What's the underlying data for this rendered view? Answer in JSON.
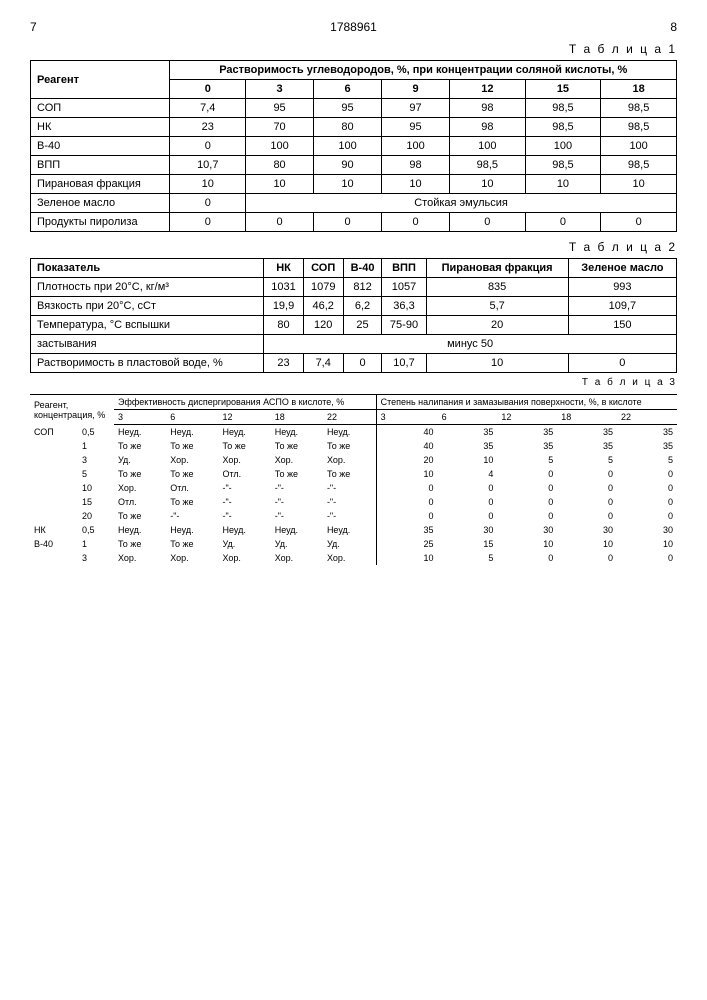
{
  "header": {
    "page_left": "7",
    "doc_number": "1788961",
    "page_right": "8"
  },
  "table1": {
    "caption": "Т а б л и ц а 1",
    "col_reagent": "Реагент",
    "header_span": "Растворимость углеводородов, %, при концентрации соляной кислоты, %",
    "conc": [
      "0",
      "3",
      "6",
      "9",
      "12",
      "15",
      "18"
    ],
    "rows": [
      {
        "label": "СОП",
        "vals": [
          "7,4",
          "95",
          "95",
          "97",
          "98",
          "98,5",
          "98,5"
        ]
      },
      {
        "label": "НК",
        "vals": [
          "23",
          "70",
          "80",
          "95",
          "98",
          "98,5",
          "98,5"
        ]
      },
      {
        "label": "В-40",
        "vals": [
          "0",
          "100",
          "100",
          "100",
          "100",
          "100",
          "100"
        ]
      },
      {
        "label": "ВПП",
        "vals": [
          "10,7",
          "80",
          "90",
          "98",
          "98,5",
          "98,5",
          "98,5"
        ]
      },
      {
        "label": "Пирановая фракция",
        "vals": [
          "10",
          "10",
          "10",
          "10",
          "10",
          "10",
          "10"
        ]
      }
    ],
    "green_oil_label": "Зеленое масло",
    "green_oil_zero": "0",
    "emulsion": "Стойкая эмульсия",
    "pyrolysis_label": "Продукты пиролиза",
    "pyrolysis_vals": [
      "0",
      "0",
      "0",
      "0",
      "0",
      "0",
      "0"
    ]
  },
  "table2": {
    "caption": "Т а б л и ц а 2",
    "col_indicator": "Показатель",
    "cols": [
      "НК",
      "СОП",
      "В-40",
      "ВПП",
      "Пирановая фракция",
      "Зеленое масло"
    ],
    "rows": [
      {
        "label": "Плотность при 20°С, кг/м³",
        "vals": [
          "1031",
          "1079",
          "812",
          "1057",
          "835",
          "993"
        ]
      },
      {
        "label": "Вязкость при 20°С, сСт",
        "vals": [
          "19,9",
          "46,2",
          "6,2",
          "36,3",
          "5,7",
          "109,7"
        ]
      },
      {
        "label": "Температура, °С вспышки",
        "vals": [
          "80",
          "120",
          "25",
          "75-90",
          "20",
          "150"
        ]
      }
    ],
    "freeze_label": "застывания",
    "freeze_val": "минус 50",
    "solubility_label": "Растворимость в пластовой воде, %",
    "solubility_vals": [
      "23",
      "7,4",
      "0",
      "10,7",
      "10",
      "0"
    ]
  },
  "table3": {
    "caption": "Т а б л и ц а 3",
    "h_reagent": "Реагент, концентрация, %",
    "h_eff": "Эффективность диспергирования АСПО в кислоте, %",
    "h_adh": "Степень налипания и замазывания поверхности, %, в кислоте",
    "conc": [
      "3",
      "6",
      "12",
      "18",
      "22"
    ],
    "rows": [
      {
        "r": "СОП",
        "c": "0,5",
        "e": [
          "Неуд.",
          "Неуд.",
          "Неуд.",
          "Неуд.",
          "Неуд."
        ],
        "a": [
          "40",
          "35",
          "35",
          "35",
          "35"
        ]
      },
      {
        "r": "",
        "c": "1",
        "e": [
          "То же",
          "То же",
          "То же",
          "То же",
          "То же"
        ],
        "a": [
          "40",
          "35",
          "35",
          "35",
          "35"
        ]
      },
      {
        "r": "",
        "c": "3",
        "e": [
          "Уд.",
          "Хор.",
          "Хор.",
          "Хор.",
          "Хор."
        ],
        "a": [
          "20",
          "10",
          "5",
          "5",
          "5"
        ]
      },
      {
        "r": "",
        "c": "5",
        "e": [
          "То же",
          "То же",
          "Отл.",
          "То же",
          "То же"
        ],
        "a": [
          "10",
          "4",
          "0",
          "0",
          "0"
        ]
      },
      {
        "r": "",
        "c": "10",
        "e": [
          "Хор.",
          "Отл.",
          "-\"-",
          "-\"-",
          "-\"-"
        ],
        "a": [
          "0",
          "0",
          "0",
          "0",
          "0"
        ]
      },
      {
        "r": "",
        "c": "15",
        "e": [
          "Отл.",
          "То же",
          "-\"-",
          "-\"-",
          "-\"-"
        ],
        "a": [
          "0",
          "0",
          "0",
          "0",
          "0"
        ]
      },
      {
        "r": "",
        "c": "20",
        "e": [
          "То же",
          "-\"-",
          "-\"-",
          "-\"-",
          "-\"-"
        ],
        "a": [
          "0",
          "0",
          "0",
          "0",
          "0"
        ]
      },
      {
        "r": "НК",
        "c": "0,5",
        "e": [
          "Неуд.",
          "Неуд.",
          "Неуд.",
          "Неуд.",
          "Неуд."
        ],
        "a": [
          "35",
          "30",
          "30",
          "30",
          "30"
        ]
      },
      {
        "r": "В-40",
        "c": "1",
        "e": [
          "То же",
          "То же",
          "Уд.",
          "Уд.",
          "Уд."
        ],
        "a": [
          "25",
          "15",
          "10",
          "10",
          "10"
        ]
      },
      {
        "r": "",
        "c": "3",
        "e": [
          "Хор.",
          "Хор.",
          "Хор.",
          "Хор.",
          "Хор."
        ],
        "a": [
          "10",
          "5",
          "0",
          "0",
          "0"
        ]
      }
    ]
  }
}
